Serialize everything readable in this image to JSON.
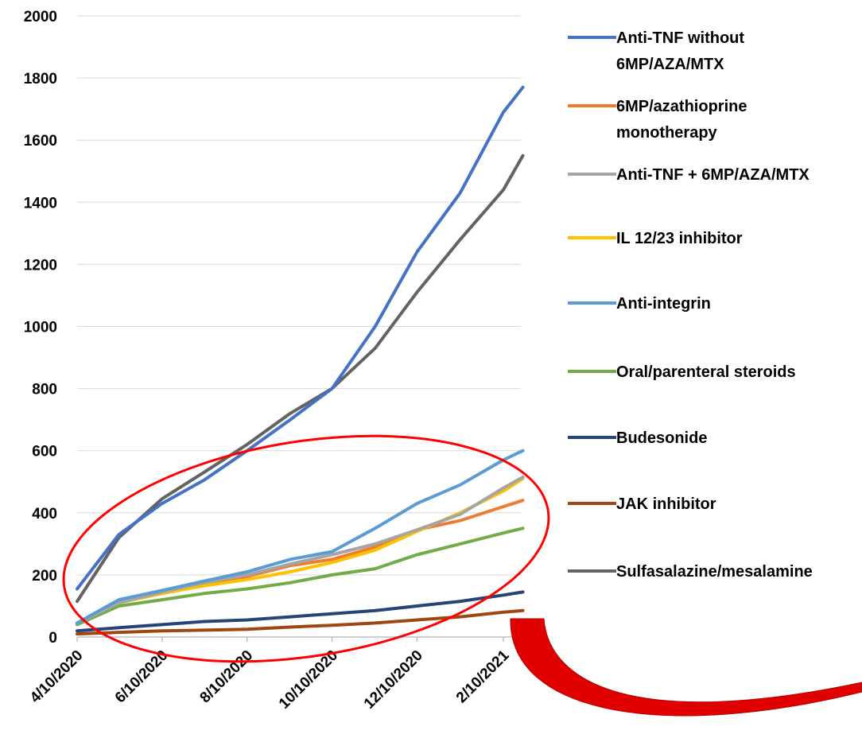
{
  "chart_data": {
    "type": "line",
    "title": "",
    "xlabel": "",
    "ylabel": "",
    "ylim": [
      0,
      2000
    ],
    "yticks": [
      "0",
      "200",
      "400",
      "600",
      "800",
      "1000",
      "1200",
      "1400",
      "1600",
      "1800",
      "2000"
    ],
    "xticks": [
      "4/10/2020",
      "6/10/2020",
      "8/10/2020",
      "10/10/2020",
      "12/10/2020",
      "2/10/2021"
    ],
    "grid": "horizontal",
    "legend_position": "right",
    "x": [
      "4/10/2020",
      "5/10/2020",
      "6/10/2020",
      "7/10/2020",
      "8/10/2020",
      "9/10/2020",
      "10/10/2020",
      "11/10/2020",
      "12/10/2020",
      "1/10/2021",
      "2/10/2021",
      "2/24/2021"
    ],
    "series": [
      {
        "name": "Anti-TNF without 6MP/AZA/MTX",
        "color": "#4472C4",
        "values": [
          155,
          330,
          430,
          505,
          600,
          700,
          800,
          1000,
          1240,
          1430,
          1690,
          1770
        ]
      },
      {
        "name": "6MP/azathioprine monotherapy",
        "color": "#ED7D31",
        "values": [
          45,
          110,
          150,
          170,
          195,
          230,
          250,
          290,
          345,
          375,
          420,
          440
        ]
      },
      {
        "name": "Anti-TNF + 6MP/AZA/MTX",
        "color": "#A5A5A5",
        "values": [
          45,
          110,
          145,
          175,
          200,
          235,
          265,
          300,
          345,
          395,
          480,
          515
        ]
      },
      {
        "name": "IL 12/23 inhibitor",
        "color": "#FFC000",
        "values": [
          45,
          110,
          140,
          165,
          185,
          210,
          240,
          280,
          340,
          400,
          470,
          510
        ]
      },
      {
        "name": "Anti-integrin",
        "color": "#5B9BD5",
        "values": [
          45,
          120,
          150,
          180,
          210,
          250,
          275,
          350,
          430,
          490,
          570,
          600
        ]
      },
      {
        "name": "Oral/parenteral steroids",
        "color": "#70AD47",
        "values": [
          40,
          100,
          120,
          140,
          155,
          175,
          200,
          220,
          265,
          300,
          335,
          350
        ]
      },
      {
        "name": "Budesonide",
        "color": "#264478",
        "values": [
          20,
          30,
          40,
          50,
          55,
          65,
          75,
          85,
          100,
          115,
          135,
          145
        ]
      },
      {
        "name": "JAK inhibitor",
        "color": "#9E480E",
        "values": [
          10,
          15,
          20,
          22,
          25,
          32,
          38,
          45,
          55,
          65,
          80,
          85
        ]
      },
      {
        "name": "Sulfasalazine/mesalamine",
        "color": "#636363",
        "values": [
          115,
          320,
          445,
          530,
          620,
          720,
          800,
          930,
          1110,
          1280,
          1440,
          1550
        ]
      }
    ]
  },
  "legend_labels": {
    "s0_line1": "Anti-TNF without",
    "s0_line2": "6MP/AZA/MTX",
    "s1_line1": "6MP/azathioprine",
    "s1_line2": "monotherapy",
    "s2": "Anti-TNF + 6MP/AZA/MTX",
    "s3": "IL 12/23 inhibitor",
    "s4": "Anti-integrin",
    "s5": "Oral/parenteral steroids",
    "s6": "Budesonide",
    "s7": "JAK inhibitor",
    "s8": "Sulfasalazine/mesalamine"
  },
  "annotation": {
    "ellipse_color": "#FF0000",
    "arrow_color": "#FF0000"
  }
}
